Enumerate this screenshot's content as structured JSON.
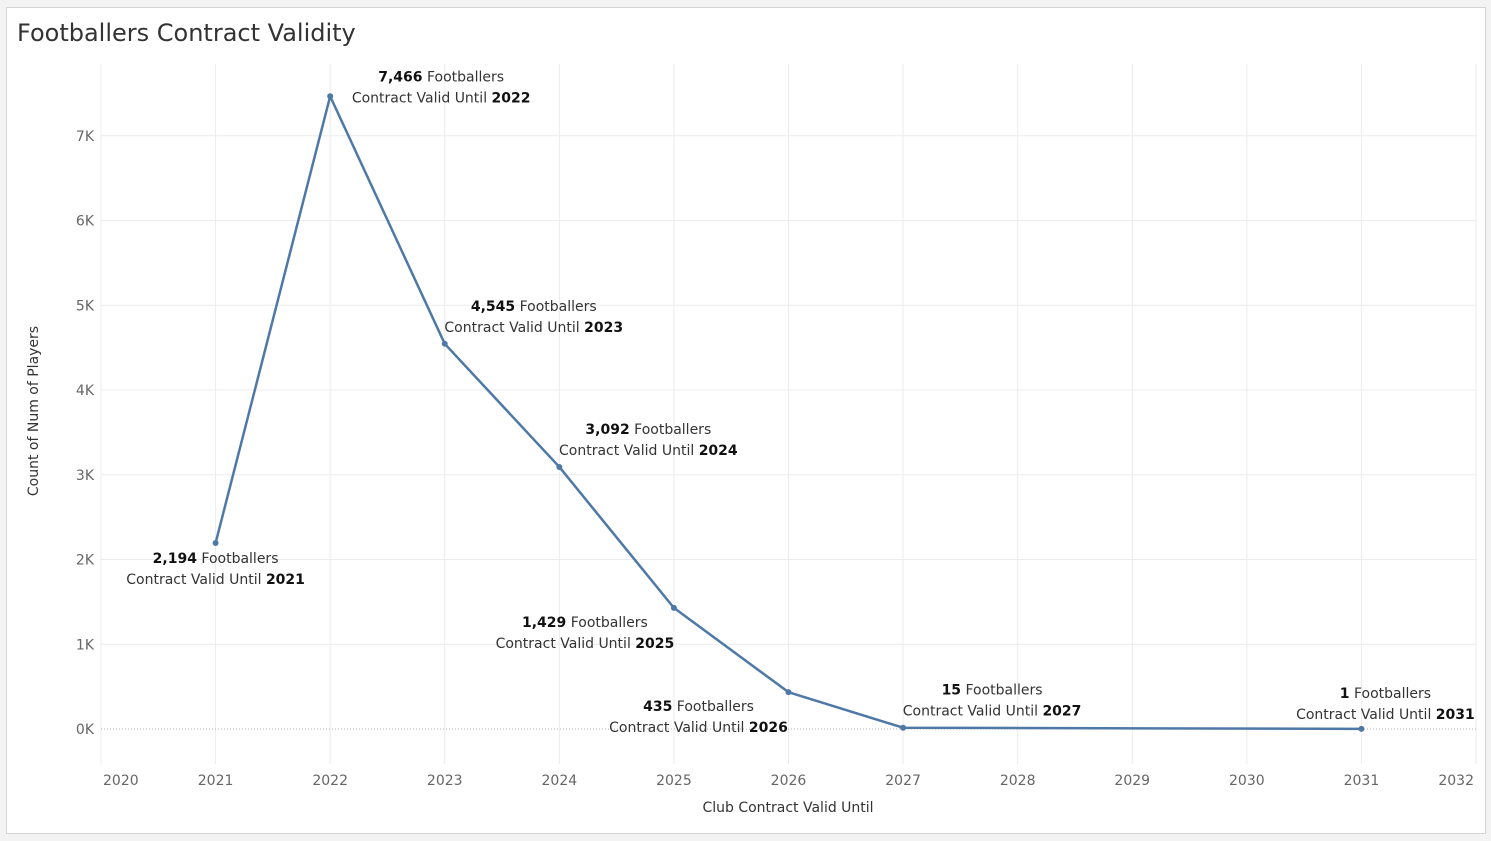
{
  "title": "Footballers Contract Validity",
  "colors": {
    "line": "#4e79a7",
    "grid": "#ececec",
    "zero_line": "#b0b0b0"
  },
  "chart_data": {
    "type": "line",
    "title": "Footballers Contract Validity",
    "xlabel": "Club Contract Valid Until",
    "ylabel": "Count of Num of Players",
    "xlim": [
      2020,
      2032
    ],
    "ylim": [
      -400,
      7800
    ],
    "x_ticks": [
      2020,
      2021,
      2022,
      2023,
      2024,
      2025,
      2026,
      2027,
      2028,
      2029,
      2030,
      2031,
      2032
    ],
    "y_ticks": [
      {
        "value": 0,
        "label": "0K"
      },
      {
        "value": 1000,
        "label": "1K"
      },
      {
        "value": 2000,
        "label": "2K"
      },
      {
        "value": 3000,
        "label": "3K"
      },
      {
        "value": 4000,
        "label": "4K"
      },
      {
        "value": 5000,
        "label": "5K"
      },
      {
        "value": 6000,
        "label": "6K"
      },
      {
        "value": 7000,
        "label": "7K"
      }
    ],
    "grid": true,
    "series": [
      {
        "points": [
          {
            "x": 2021,
            "y": 2194,
            "count_text": "2,194",
            "suffix": " Footballers",
            "line2_prefix": "Contract Valid Until ",
            "line2_year": "2021",
            "label_pos": "below"
          },
          {
            "x": 2022,
            "y": 7466,
            "count_text": "7,466",
            "suffix": " Footballers",
            "line2_prefix": "Contract Valid Until ",
            "line2_year": "2022",
            "label_pos": "right"
          },
          {
            "x": 2023,
            "y": 4545,
            "count_text": "4,545",
            "suffix": " Footballers",
            "line2_prefix": "Contract Valid Until ",
            "line2_year": "2023",
            "label_pos": "above-right"
          },
          {
            "x": 2024,
            "y": 3092,
            "count_text": "3,092",
            "suffix": " Footballers",
            "line2_prefix": "Contract Valid Until ",
            "line2_year": "2024",
            "label_pos": "above-right"
          },
          {
            "x": 2025,
            "y": 1429,
            "count_text": "1,429",
            "suffix": " Footballers",
            "line2_prefix": "Contract Valid Until ",
            "line2_year": "2025",
            "label_pos": "left"
          },
          {
            "x": 2026,
            "y": 435,
            "count_text": "435",
            "suffix": " Footballers",
            "line2_prefix": "Contract Valid Until ",
            "line2_year": "2026",
            "label_pos": "below-left"
          },
          {
            "x": 2027,
            "y": 15,
            "count_text": "15",
            "suffix": " Footballers",
            "line2_prefix": "Contract Valid Until ",
            "line2_year": "2027",
            "label_pos": "above-right"
          },
          {
            "x": 2031,
            "y": 1,
            "count_text": "1",
            "suffix": " Footballers",
            "line2_prefix": "Contract Valid Until ",
            "line2_year": "2031",
            "label_pos": "above"
          }
        ]
      }
    ]
  }
}
